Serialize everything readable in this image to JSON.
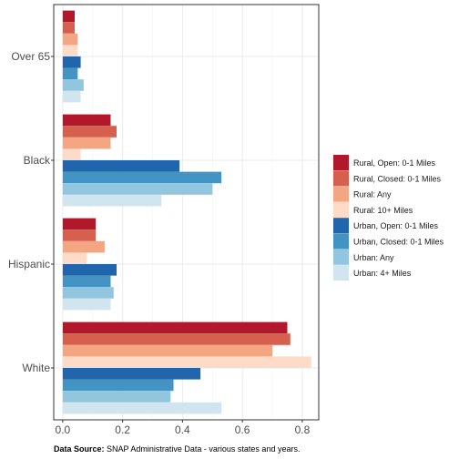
{
  "chart_data": {
    "type": "bar",
    "orientation": "horizontal",
    "categories": [
      "White",
      "Hispanic",
      "Black",
      "Over 65"
    ],
    "xlim": [
      -0.03,
      0.855
    ],
    "x_ticks": [
      0.0,
      0.2,
      0.4,
      0.6,
      0.8
    ],
    "x_tick_labels": [
      "0.0",
      "0.2",
      "0.4",
      "0.6",
      "0.8"
    ],
    "grid": true,
    "legend_position": "right",
    "series": [
      {
        "name": "Rural, Open: 0-1 Miles",
        "color": "#b2182b",
        "values": [
          0.75,
          0.11,
          0.16,
          0.04
        ]
      },
      {
        "name": "Rural, Closed: 0-1 Miles",
        "color": "#d6604d",
        "values": [
          0.76,
          0.11,
          0.18,
          0.04
        ]
      },
      {
        "name": "Rural: Any",
        "color": "#f4a582",
        "values": [
          0.7,
          0.14,
          0.16,
          0.05
        ]
      },
      {
        "name": "Rural: 10+ Miles",
        "color": "#fddbc7",
        "values": [
          0.83,
          0.08,
          0.06,
          0.05
        ]
      },
      {
        "name": "Urban, Open: 0-1 Miles",
        "color": "#2166ac",
        "values": [
          0.46,
          0.18,
          0.39,
          0.06
        ]
      },
      {
        "name": "Urban, Closed: 0-1 Miles",
        "color": "#4393c3",
        "values": [
          0.37,
          0.16,
          0.53,
          0.05
        ]
      },
      {
        "name": "Urban: Any",
        "color": "#92c5de",
        "values": [
          0.36,
          0.17,
          0.5,
          0.07
        ]
      },
      {
        "name": "Urban: 4+ Miles",
        "color": "#d1e5f0",
        "values": [
          0.53,
          0.16,
          0.33,
          0.06
        ]
      }
    ],
    "caption_bold": "Data Source:",
    "caption_text": " SNAP Administrative Data - various states and years."
  }
}
